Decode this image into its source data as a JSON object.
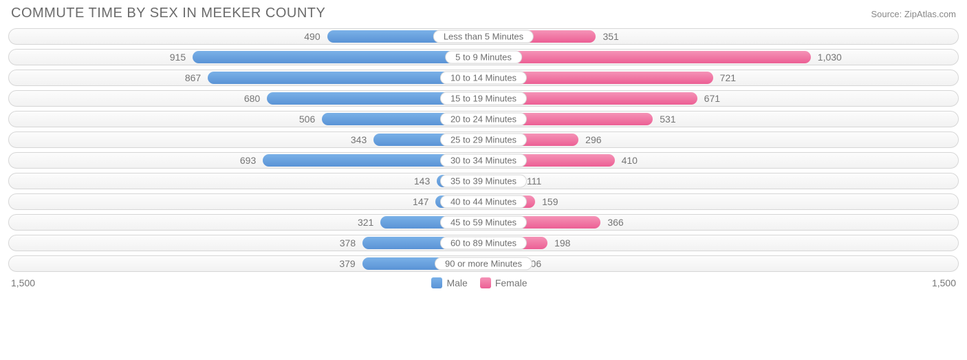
{
  "title": "COMMUTE TIME BY SEX IN MEEKER COUNTY",
  "source": "Source: ZipAtlas.com",
  "axis_max": 1500,
  "axis_label_left": "1,500",
  "axis_label_right": "1,500",
  "colors": {
    "male_top": "#7ab1e8",
    "male_bottom": "#5a93d6",
    "female_top": "#f593b7",
    "female_bottom": "#ec5f94",
    "track_border": "#d6d6d6",
    "text": "#757575"
  },
  "legend": {
    "male": "Male",
    "female": "Female"
  },
  "rows": [
    {
      "label": "Less than 5 Minutes",
      "male": 490,
      "male_txt": "490",
      "female": 351,
      "female_txt": "351"
    },
    {
      "label": "5 to 9 Minutes",
      "male": 915,
      "male_txt": "915",
      "female": 1030,
      "female_txt": "1,030"
    },
    {
      "label": "10 to 14 Minutes",
      "male": 867,
      "male_txt": "867",
      "female": 721,
      "female_txt": "721"
    },
    {
      "label": "15 to 19 Minutes",
      "male": 680,
      "male_txt": "680",
      "female": 671,
      "female_txt": "671"
    },
    {
      "label": "20 to 24 Minutes",
      "male": 506,
      "male_txt": "506",
      "female": 531,
      "female_txt": "531"
    },
    {
      "label": "25 to 29 Minutes",
      "male": 343,
      "male_txt": "343",
      "female": 296,
      "female_txt": "296"
    },
    {
      "label": "30 to 34 Minutes",
      "male": 693,
      "male_txt": "693",
      "female": 410,
      "female_txt": "410"
    },
    {
      "label": "35 to 39 Minutes",
      "male": 143,
      "male_txt": "143",
      "female": 111,
      "female_txt": "111"
    },
    {
      "label": "40 to 44 Minutes",
      "male": 147,
      "male_txt": "147",
      "female": 159,
      "female_txt": "159"
    },
    {
      "label": "45 to 59 Minutes",
      "male": 321,
      "male_txt": "321",
      "female": 366,
      "female_txt": "366"
    },
    {
      "label": "60 to 89 Minutes",
      "male": 378,
      "male_txt": "378",
      "female": 198,
      "female_txt": "198"
    },
    {
      "label": "90 or more Minutes",
      "male": 379,
      "male_txt": "379",
      "female": 106,
      "female_txt": "106"
    }
  ]
}
